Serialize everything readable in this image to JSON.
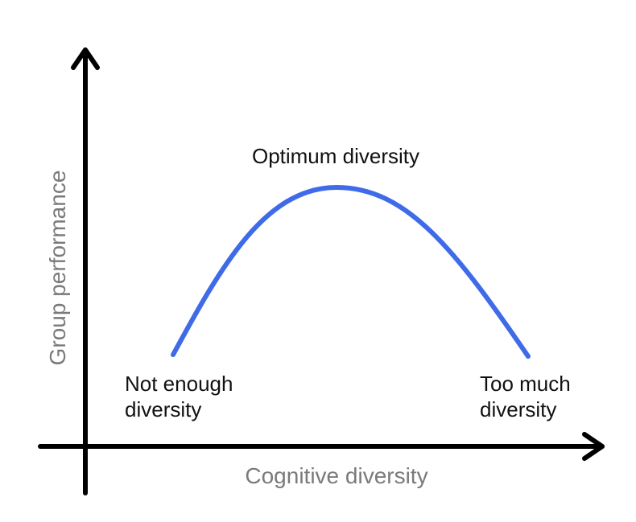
{
  "diagram": {
    "peak_label": "Optimum diversity",
    "left_label": [
      "Not enough",
      "diversity"
    ],
    "right_label": [
      "Too much",
      "diversity"
    ],
    "x_axis_label": "Cognitive diversity",
    "y_axis_label": "Group performance"
  },
  "colors": {
    "curve": "#3f6be8",
    "axes": "#000000",
    "axis_label": "#7a7a7a",
    "text": "#111111"
  }
}
